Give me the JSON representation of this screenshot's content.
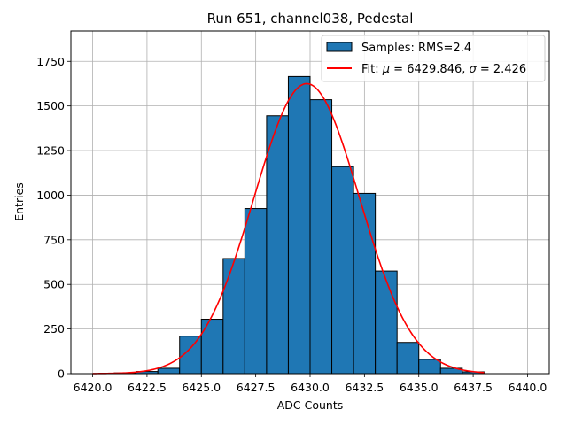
{
  "chart_data": {
    "type": "bar",
    "title": "Run 651, channel038, Pedestal",
    "xlabel": "ADC Counts",
    "ylabel": "Entries",
    "xlim": [
      6419.0,
      6441.0
    ],
    "ylim": [
      0,
      1920
    ],
    "grid": true,
    "legend_position": "top-right",
    "xticks": [
      6420.0,
      6422.5,
      6425.0,
      6427.5,
      6430.0,
      6432.5,
      6435.0,
      6437.5,
      6440.0
    ],
    "xtick_labels": [
      "6420.0",
      "6422.5",
      "6425.0",
      "6427.5",
      "6430.0",
      "6432.5",
      "6435.0",
      "6437.5",
      "6440.0"
    ],
    "yticks": [
      0,
      250,
      500,
      750,
      1000,
      1250,
      1500,
      1750
    ],
    "ytick_labels": [
      "0",
      "250",
      "500",
      "750",
      "1000",
      "1250",
      "1500",
      "1750"
    ],
    "series": [
      {
        "name": "Samples: RMS=2.4",
        "kind": "histogram",
        "color": "#1f77b4",
        "edge_color": "#000000",
        "bin_edges": [
          6420,
          6421,
          6422,
          6423,
          6424,
          6425,
          6426,
          6427,
          6428,
          6429,
          6430,
          6431,
          6432,
          6433,
          6434,
          6435,
          6436,
          6437,
          6438
        ],
        "counts": [
          0,
          4,
          12,
          30,
          210,
          305,
          645,
          925,
          1445,
          1665,
          1535,
          1160,
          1010,
          575,
          175,
          80,
          30,
          10
        ]
      },
      {
        "name": "Fit: μ = 6429.846, σ = 2.426",
        "kind": "gaussian-fit",
        "color": "#ff0000",
        "mu": 6429.846,
        "sigma": 2.426,
        "amplitude": 1625,
        "x_range": [
          6420,
          6438
        ]
      }
    ]
  }
}
